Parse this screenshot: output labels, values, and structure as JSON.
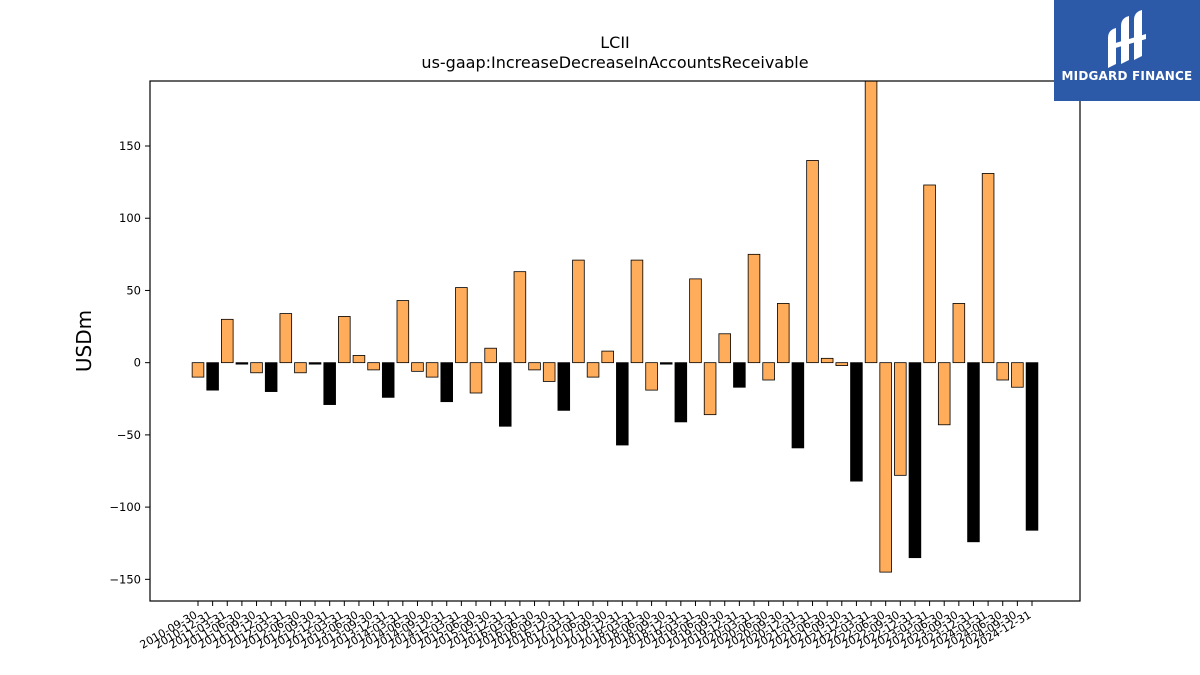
{
  "chart_data": {
    "type": "bar",
    "title": "LCII",
    "subtitle": "us-gaap:IncreaseDecreaseInAccountsReceivable",
    "ylabel": "USDm",
    "xlabel": "",
    "ylim": [
      -165,
      195
    ],
    "yticks": [
      -150,
      -100,
      -50,
      0,
      50,
      100,
      150
    ],
    "ytick_labels": [
      "−150",
      "−100",
      "−50",
      "0",
      "50",
      "100",
      "150"
    ],
    "colors": {
      "default": "#ffad5a",
      "q4": "#000000",
      "edge": "#000000"
    },
    "categories": [
      "2010-09-30",
      "2010-12-31",
      "2011-03-31",
      "2011-06-30",
      "2011-09-30",
      "2011-12-31",
      "2012-03-31",
      "2012-06-30",
      "2012-09-30",
      "2012-12-31",
      "2013-03-31",
      "2013-06-30",
      "2013-09-30",
      "2013-12-31",
      "2014-03-31",
      "2014-06-30",
      "2014-09-30",
      "2014-12-31",
      "2015-03-31",
      "2015-06-30",
      "2015-09-30",
      "2015-12-31",
      "2016-03-31",
      "2016-06-30",
      "2016-09-30",
      "2016-12-31",
      "2017-03-31",
      "2017-06-30",
      "2017-09-30",
      "2017-12-31",
      "2018-03-31",
      "2018-06-30",
      "2018-09-30",
      "2018-12-31",
      "2019-03-31",
      "2019-06-30",
      "2019-09-30",
      "2019-12-31",
      "2020-03-31",
      "2020-06-30",
      "2020-09-30",
      "2020-12-31",
      "2021-03-31",
      "2021-06-30",
      "2021-09-30",
      "2021-12-31",
      "2022-03-31",
      "2022-06-30",
      "2022-09-30",
      "2022-12-31",
      "2023-03-31",
      "2023-06-30",
      "2023-09-30",
      "2023-12-31",
      "2024-03-31",
      "2024-06-30",
      "2024-09-30",
      "2024-12-31"
    ],
    "values": [
      -10,
      -19,
      30,
      -1,
      -7,
      -20,
      34,
      -7,
      -1,
      -29,
      32,
      5,
      -5,
      -24,
      43,
      -6,
      -10,
      -27,
      52,
      -21,
      10,
      -44,
      63,
      -5,
      -13,
      -33,
      71,
      -10,
      8,
      -57,
      71,
      -19,
      -1,
      -41,
      58,
      -36,
      20,
      -17,
      75,
      -12,
      41,
      -59,
      140,
      3,
      -2,
      -82,
      195,
      -145,
      -78,
      -135,
      123,
      -43,
      41,
      -124,
      131,
      -12,
      -17,
      -116
    ],
    "bar_colors": [
      "#ffad5a",
      "#000000",
      "#ffad5a",
      "#000000",
      "#ffad5a",
      "#000000",
      "#ffad5a",
      "#ffad5a",
      "#000000",
      "#000000",
      "#ffad5a",
      "#ffad5a",
      "#ffad5a",
      "#000000",
      "#ffad5a",
      "#ffad5a",
      "#ffad5a",
      "#000000",
      "#ffad5a",
      "#ffad5a",
      "#ffad5a",
      "#000000",
      "#ffad5a",
      "#ffad5a",
      "#ffad5a",
      "#000000",
      "#ffad5a",
      "#ffad5a",
      "#ffad5a",
      "#000000",
      "#ffad5a",
      "#ffad5a",
      "#000000",
      "#000000",
      "#ffad5a",
      "#ffad5a",
      "#ffad5a",
      "#000000",
      "#ffad5a",
      "#ffad5a",
      "#ffad5a",
      "#000000",
      "#ffad5a",
      "#ffad5a",
      "#ffad5a",
      "#000000",
      "#ffad5a",
      "#ffad5a",
      "#ffad5a",
      "#000000",
      "#ffad5a",
      "#ffad5a",
      "#ffad5a",
      "#000000",
      "#ffad5a",
      "#ffad5a",
      "#ffad5a",
      "#000000"
    ]
  },
  "logo": {
    "text": "MIDGARD FINANCE",
    "background": "#2d5aa8"
  }
}
